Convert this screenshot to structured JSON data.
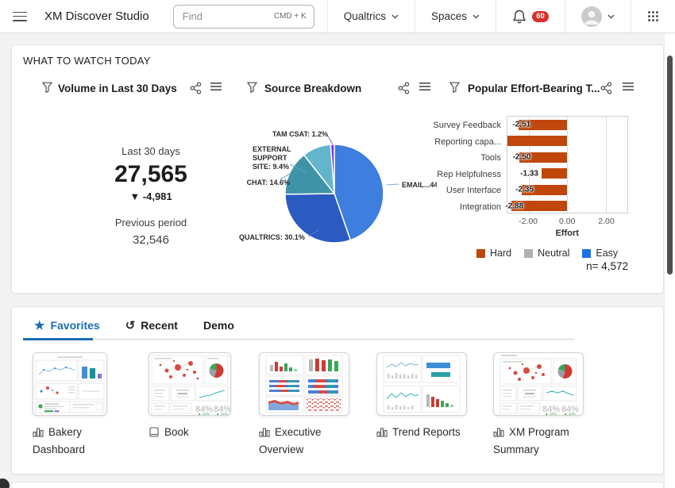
{
  "colors": {
    "accent_blue": "#1b6cb3",
    "badge_red": "#d9302e",
    "bar_orange": "#c0470b",
    "neutral_gray": "#b0b0b0",
    "easy_blue": "#1574e6"
  },
  "topbar": {
    "app_title": "XM Discover Studio",
    "search_placeholder": "Find",
    "search_shortcut": "CMD + K",
    "qualtrics_menu": "Qualtrics",
    "spaces_menu": "Spaces",
    "notification_count": "60"
  },
  "watch": {
    "section_title": "WHAT TO WATCH TODAY",
    "volume": {
      "title": "Volume in Last 30 Days",
      "period_label": "Last 30 days",
      "value": "27,565",
      "delta": "▼ -4,981",
      "previous_label": "Previous period",
      "previous_value": "32,546"
    },
    "source": {
      "title": "Source Breakdown",
      "chart_data": {
        "type": "pie",
        "labels": [
          "EMAIL",
          "QUALTRICS",
          "CHAT",
          "EXTERNAL SUPPORT SITE",
          "TAM CSAT"
        ],
        "values": [
          44.7,
          30.1,
          14.6,
          9.4,
          1.2
        ],
        "colors": [
          "#3d7ede",
          "#2b5ac1",
          "#3e93a6",
          "#63b5cc",
          "#7b2ff2"
        ],
        "callouts": {
          "tam": "TAM CSAT: 1.2%",
          "external": "EXTERNAL SUPPORT SITE: 9.4%",
          "chat": "CHAT: 14.6%",
          "qualtrics": "QUALTRICS: 30.1%",
          "email": "EMAIL...44"
        }
      }
    },
    "effort": {
      "title": "Popular Effort-Bearing T...",
      "chart_data": {
        "type": "bar",
        "orientation": "horizontal",
        "categories": [
          "Survey Feedback",
          "Reporting capa...",
          "Tools",
          "Rep Helpfulness",
          "User Interface",
          "Integration"
        ],
        "values": [
          -2.51,
          -3.1,
          -2.5,
          -1.33,
          -2.35,
          -2.88
        ],
        "value_labels": [
          "-2.51",
          "",
          "-2.50",
          "-1.33",
          "-2.35",
          "-2.88"
        ],
        "xlabel": "Effort",
        "xticks": [
          "-2.00",
          "0.00",
          "2.00"
        ],
        "xtick_values": [
          -2,
          0,
          2
        ],
        "xlim": [
          -3.1,
          3.12
        ],
        "bar_color": "#c0470b",
        "grid": true
      },
      "legend": [
        {
          "label": "Hard",
          "color": "#c0470b"
        },
        {
          "label": "Neutral",
          "color": "#b0b0b0"
        },
        {
          "label": "Easy",
          "color": "#1574e6"
        }
      ],
      "n_label": "n= 4,572"
    }
  },
  "tabs": [
    {
      "label": "Favorites",
      "active": true
    },
    {
      "label": "Recent",
      "active": false
    },
    {
      "label": "Demo",
      "active": false
    }
  ],
  "cards": [
    {
      "label": "Bakery Dashboard"
    },
    {
      "label": "Book",
      "metrics": [
        "84%",
        "84%"
      ],
      "delta": "▲ 12%"
    },
    {
      "label": "Executive Overview"
    },
    {
      "label": "Trend Reports"
    },
    {
      "label": "XM Program Summary",
      "metrics": [
        "84%",
        "84%"
      ],
      "delta": "▲ 12%"
    }
  ]
}
